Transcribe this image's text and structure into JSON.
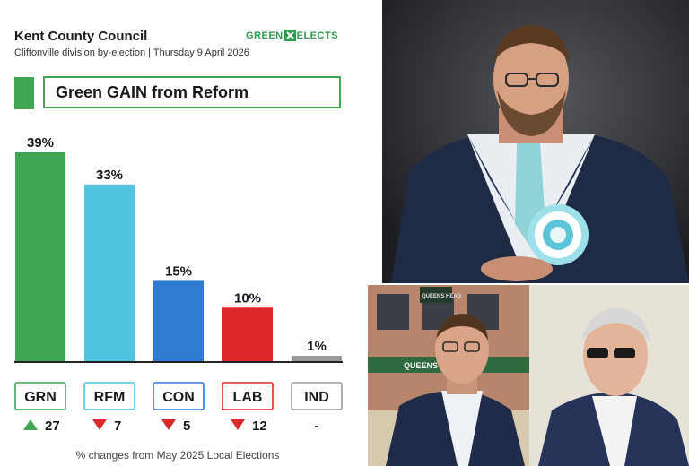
{
  "header": {
    "title": "Kent County Council",
    "subtitle": "Cliftonville division by-election | Thursday 9 April 2026",
    "logo_left": "GREEN",
    "logo_right": "ELECTS"
  },
  "result_banner": "Green GAIN from Reform",
  "footnote": "% changes from May 2025 Local Elections",
  "chart_data": {
    "type": "bar",
    "title": "",
    "categories": [
      "GRN",
      "RFM",
      "CON",
      "LAB",
      "IND"
    ],
    "values": [
      39,
      33,
      15,
      10,
      1
    ],
    "value_labels": [
      "39%",
      "33%",
      "15%",
      "10%",
      "1%"
    ],
    "colors": [
      "#3fa654",
      "#4fc3e0",
      "#2f7ad3",
      "#dc2a2a",
      "#9a9a9a"
    ],
    "changes": [
      {
        "direction": "up",
        "value": "27"
      },
      {
        "direction": "down",
        "value": "7"
      },
      {
        "direction": "down",
        "value": "5"
      },
      {
        "direction": "down",
        "value": "12"
      },
      {
        "direction": "none",
        "value": "-"
      }
    ],
    "ylim": [
      0,
      39
    ],
    "grid": false,
    "legend": "none"
  },
  "colors": {
    "green_accent": "#3fa654",
    "up_arrow": "#3fa654",
    "down_arrow": "#dc2a2a"
  },
  "photos": {
    "top_alt": "",
    "bottom_alt": "",
    "bottom_sign": "QUEENS HEAD",
    "bottom_sign_upper": "QUEENS HEAD"
  }
}
